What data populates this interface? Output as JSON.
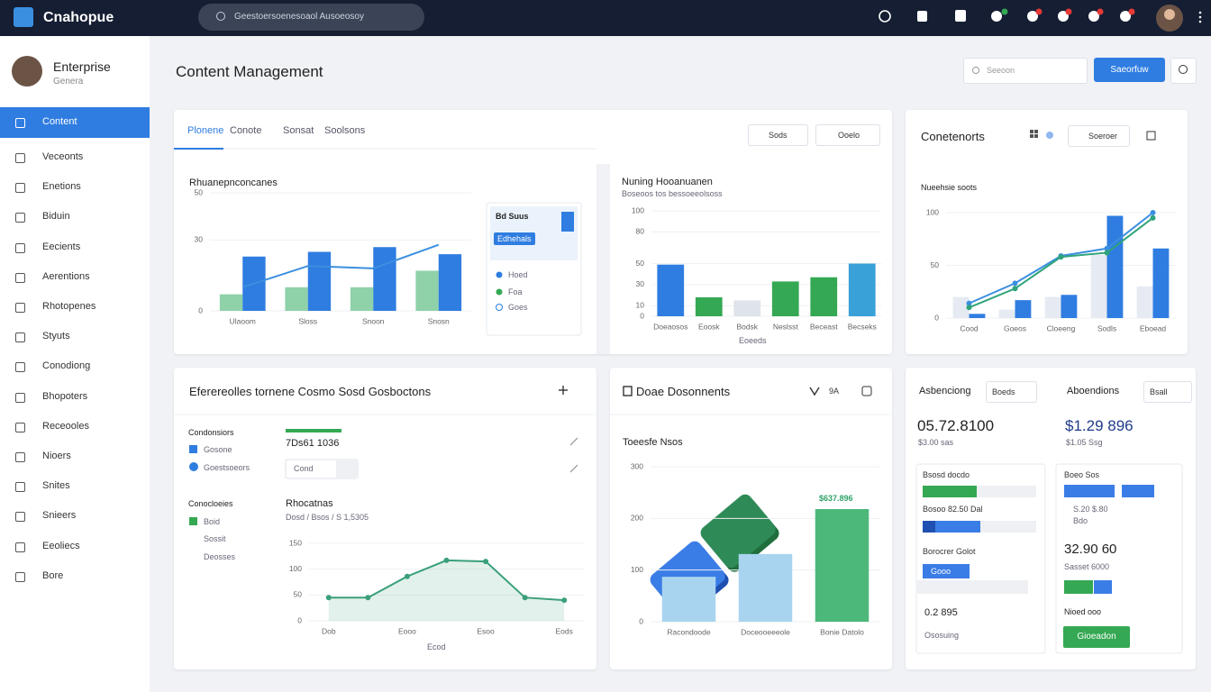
{
  "topbar": {
    "logo": "Cnahopue",
    "search": "Geestoersoenesoaol Ausoeosoy"
  },
  "sidebar": {
    "name": "Enterprise",
    "role": "Genera",
    "menu": [
      "Content",
      "Veceonts",
      "Enetions",
      "Biduin",
      "Eecients",
      "Aerentions",
      "Rhotopenes",
      "Styuts",
      "Conodiong",
      "Bhopoters",
      "Receooles",
      "Nioers",
      "Snites",
      "Snieers",
      "Eeoliecs",
      "Bore"
    ]
  },
  "header": {
    "title": "Content Management",
    "search": "Seeoon",
    "button": "Saeorfuw"
  },
  "panel1": {
    "tabs": [
      "Plonene",
      "Conote",
      "Sonsat",
      "Soolsons"
    ],
    "filters": [
      "Sods",
      "Ooelo"
    ],
    "chart1": {
      "type": "bar",
      "title": "Rhuanepnconcanes",
      "categories": [
        "Ulaoom",
        "Sloss",
        "Snoon",
        "Snosn"
      ],
      "ylim": [
        0,
        50
      ],
      "yticks": [
        0,
        30,
        50
      ],
      "series": [
        {
          "color": "#8fd1a8",
          "values": [
            7,
            10,
            10,
            17
          ]
        },
        {
          "color": "#2f7de1",
          "values": [
            23,
            25,
            27,
            24
          ]
        },
        {
          "type": "line",
          "color": "#3b8fe0",
          "values": [
            10,
            19,
            18,
            28
          ]
        }
      ]
    },
    "legend": {
      "title": "Bd Suus",
      "badge": "Edhehals",
      "items": [
        "Hoed",
        "Foa",
        "Goes"
      ]
    },
    "chart2": {
      "type": "bar",
      "title": "Nuning Hooanuanen",
      "subtitle": "Boseoos tos bessoeeolsoss",
      "xlabel": "Eoeeds",
      "categories": [
        "Doeaosos",
        "Eoosk",
        "Bodsk",
        "Neslsst",
        "Beceast",
        "Becseks"
      ],
      "ylim": [
        0,
        100
      ],
      "yticks": [
        0,
        10,
        30,
        50,
        80,
        100
      ],
      "series": [
        {
          "values": [
            49,
            18,
            15,
            33,
            37,
            50
          ],
          "colors": [
            "#2f7de1",
            "#34a853",
            "#dfe3ea",
            "#34a853",
            "#34a853",
            "#3aa0d8"
          ]
        }
      ]
    }
  },
  "panel2": {
    "title": "Conetenorts",
    "search": "Soeroer",
    "chart": {
      "type": "bar",
      "title": "Nueehsie soots",
      "categories": [
        "Cood",
        "Goeos",
        "Cloeeng",
        "Sodls",
        "Eboead"
      ],
      "ylim": [
        0,
        100
      ],
      "yticks": [
        0,
        50,
        100
      ],
      "series": [
        {
          "color": "#e6eaf2",
          "values": [
            20,
            8,
            20,
            60,
            30
          ]
        },
        {
          "color": "#2f7de1",
          "values": [
            4,
            17,
            22,
            97,
            66
          ]
        },
        {
          "type": "line",
          "color": "#3b8fe0",
          "markers": true,
          "values": [
            14,
            33,
            59,
            66,
            100
          ]
        },
        {
          "type": "line",
          "color": "#2fa37a",
          "markers": true,
          "values": [
            10,
            28,
            58,
            62,
            95
          ]
        }
      ]
    }
  },
  "panel3": {
    "title": "Eferereolles tornene Cosmo Sosd Gosboctons",
    "group1": "Condonsiors",
    "check": "Gosone",
    "radio": "Goestsoeors",
    "group2": "Conocloeies",
    "items": [
      "Boid",
      "Sossit",
      "Deosses"
    ],
    "value": "7Ds61 1036",
    "input": "Cond",
    "chart": {
      "type": "line",
      "title": "Rhocatnas",
      "subtitle": "Dosd / Bsos / S 1,5305",
      "xlabel": "Ecod",
      "categories": [
        "Dob",
        null,
        "Eooo",
        null,
        "Esoo",
        null,
        "Eods"
      ],
      "ylim": [
        0,
        150
      ],
      "yticks": [
        0,
        50,
        100,
        150
      ],
      "series": [
        {
          "type": "line",
          "area": true,
          "markers": true,
          "color": "#3aa07a",
          "values": [
            45,
            45,
            86,
            117,
            115,
            45,
            40
          ]
        }
      ]
    }
  },
  "panel4": {
    "title": "Doae Dosonnents",
    "control": "9A",
    "annotation": "$637.896",
    "chart": {
      "type": "bar",
      "title": "Toeesfe Nsos",
      "categories": [
        "Racondoode",
        "Doceooeeeole",
        "Bonie Datolo"
      ],
      "ylim": [
        0,
        300
      ],
      "yticks": [
        0,
        100,
        200,
        300
      ],
      "series": [
        {
          "values": [
            87,
            131,
            218
          ],
          "colors": [
            "#a8d4f0",
            "#a8d4f0",
            "#4cb87a"
          ]
        }
      ]
    }
  },
  "panel5": {
    "left": {
      "title": "Asbenciong",
      "select": "Boeds",
      "value": "05.72.8100",
      "sub": "$3.00 sas",
      "card": [
        "Bsosd docdo",
        "Bosoo 82.50 Dal",
        "Borocrer Golot",
        "Gooo",
        "0.2 895",
        "Ososuing"
      ]
    },
    "right": {
      "title": "Aboendions",
      "select": "Bsall",
      "value": "$1.29 896",
      "sub": "$1.05 Ssg",
      "card": [
        "Boeo Sos",
        "S.20 $.80",
        "Bdo",
        "32.90 60",
        "Sasset 6000",
        "Nioed ooo",
        "Gioeadon"
      ]
    }
  }
}
